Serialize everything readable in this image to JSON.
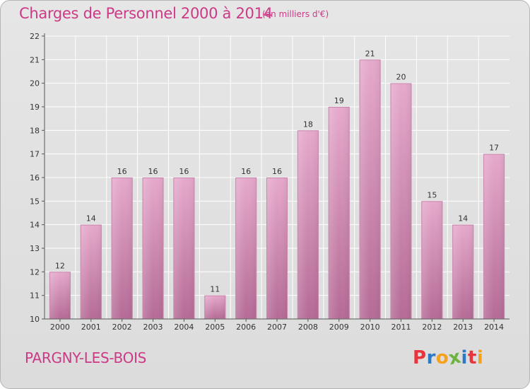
{
  "header": {
    "title": "Charges de Personnel 2000 à 2014",
    "unit": "(en milliers d'€)"
  },
  "footer": {
    "place": "PARGNY-LES-BOIS",
    "logo_text": "Proxiti",
    "logo_colors": [
      "#e8343c",
      "#2d79c6",
      "#f4a21c",
      "#6cb33f",
      "#2d79c6",
      "#e8343c",
      "#f4a21c"
    ]
  },
  "colors": {
    "bar": "#d98fb8",
    "bar_dark": "#b86495",
    "bar_light": "#e8b6d2",
    "title": "#cc3a86",
    "grid": "#ffffff"
  },
  "chart_data": {
    "type": "bar",
    "title": "Charges de Personnel 2000 à 2014",
    "subtitle": "(en milliers d'€)",
    "categories": [
      "2000",
      "2001",
      "2002",
      "2003",
      "2004",
      "2005",
      "2006",
      "2007",
      "2008",
      "2009",
      "2010",
      "2011",
      "2012",
      "2013",
      "2014"
    ],
    "values": [
      12,
      14,
      16,
      16,
      16,
      11,
      16,
      16,
      18,
      19,
      21,
      20,
      15,
      14,
      17
    ],
    "ylim": [
      10,
      22
    ],
    "yticks": [
      10,
      11,
      12,
      13,
      14,
      15,
      16,
      17,
      18,
      19,
      20,
      21,
      22
    ],
    "xlabel": "",
    "ylabel": "",
    "grid": true
  }
}
